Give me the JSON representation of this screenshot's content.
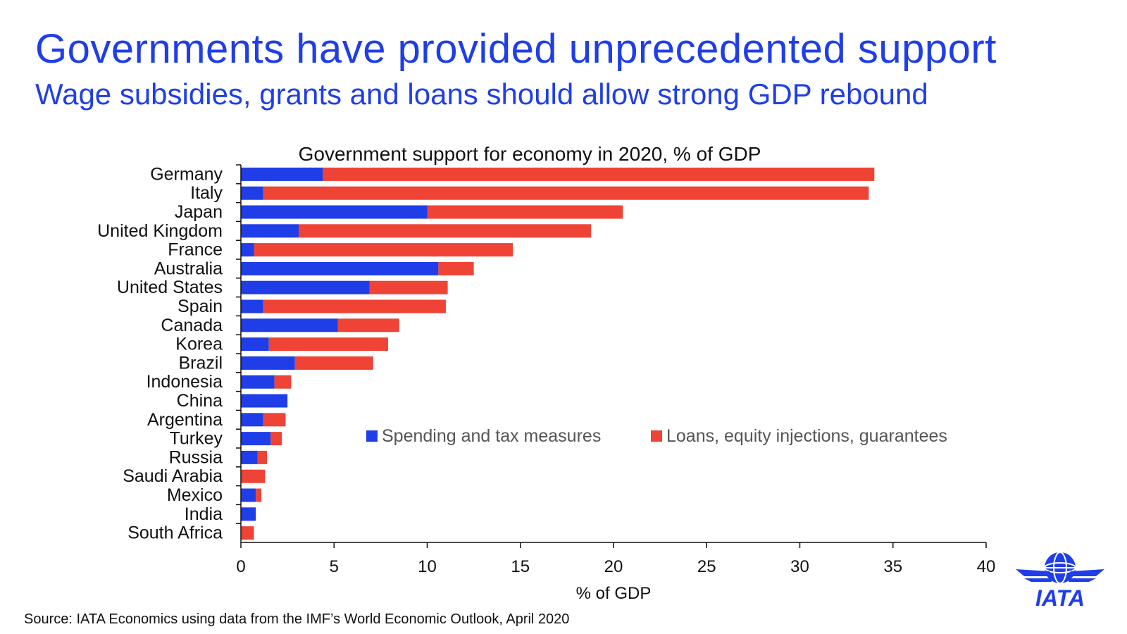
{
  "header": {
    "title": "Governments have provided unprecedented support",
    "subtitle": "Wage subsidies, grants and loans should allow strong GDP rebound"
  },
  "footer": {
    "source": "Source: IATA Economics using data from the IMF’s World Economic Outlook, April 2020"
  },
  "logo": {
    "text": "IATA",
    "icon": "iata-globe-wings-icon"
  },
  "colors": {
    "brand_blue": "#1f3ee8",
    "series_blue": "#1f3ee8",
    "series_red": "#ef4335"
  },
  "chart_data": {
    "type": "bar",
    "orientation": "horizontal",
    "stacked": true,
    "title": "Government support for economy in 2020, % of GDP",
    "xlabel": "% of GDP",
    "ylabel": "",
    "xlim": [
      0,
      40
    ],
    "xticks": [
      0,
      5,
      10,
      15,
      20,
      25,
      30,
      35,
      40
    ],
    "grid": false,
    "legend_position": "center-right",
    "categories": [
      "Germany",
      "Italy",
      "Japan",
      "United Kingdom",
      "France",
      "Australia",
      "United States",
      "Spain",
      "Canada",
      "Korea",
      "Brazil",
      "Indonesia",
      "China",
      "Argentina",
      "Turkey",
      "Russia",
      "Saudi Arabia",
      "Mexico",
      "India",
      "South Africa"
    ],
    "series": [
      {
        "name": "Spending and tax measures",
        "color": "#1f3ee8",
        "values": [
          4.4,
          1.2,
          10.0,
          3.1,
          0.7,
          10.6,
          6.9,
          1.2,
          5.2,
          1.5,
          2.9,
          1.8,
          2.5,
          1.2,
          1.6,
          0.9,
          0.0,
          0.8,
          0.8,
          0.0
        ]
      },
      {
        "name": "Loans, equity injections, guarantees",
        "color": "#ef4335",
        "values": [
          29.6,
          32.5,
          10.5,
          15.7,
          13.9,
          1.9,
          4.2,
          9.8,
          3.3,
          6.4,
          4.2,
          0.9,
          0.0,
          1.2,
          0.6,
          0.5,
          1.3,
          0.3,
          0.0,
          0.7
        ]
      }
    ]
  }
}
